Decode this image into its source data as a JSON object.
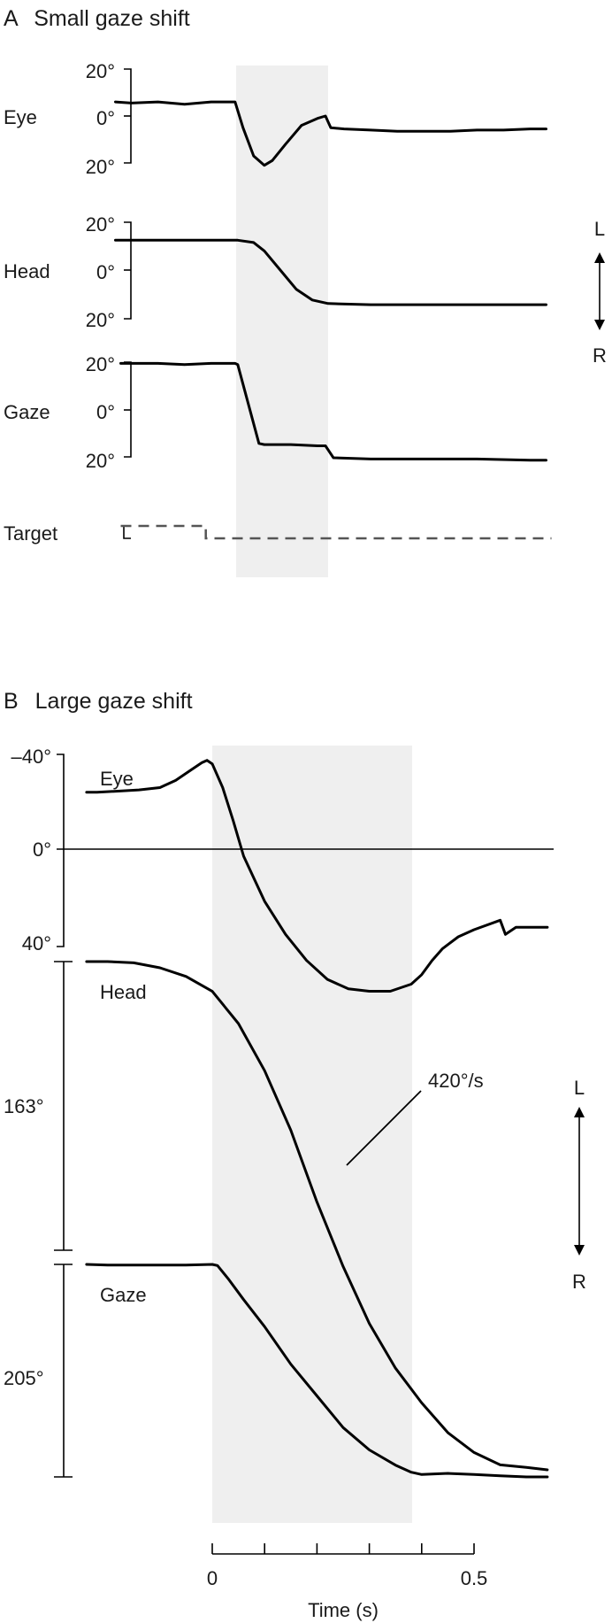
{
  "colors": {
    "shade": "#efefef",
    "trace": "#000000",
    "target": "#555555",
    "text": "#1a1a1a"
  },
  "chart_data": [
    {
      "panel": "A",
      "title": "Small gaze shift",
      "type": "line",
      "direction_labels": {
        "up": "L",
        "down": "R"
      },
      "shaded_interval_s": [
        0.047,
        0.22
      ],
      "traces": [
        {
          "name": "Eye",
          "tick_labels": [
            "20°",
            "0°",
            "20°"
          ],
          "ylim": [
            -20,
            20
          ],
          "t": [
            -0.18,
            -0.15,
            -0.1,
            -0.05,
            0.0,
            0.04,
            0.045,
            0.06,
            0.08,
            0.1,
            0.115,
            0.14,
            0.17,
            0.2,
            0.215,
            0.225,
            0.25,
            0.3,
            0.35,
            0.4,
            0.45,
            0.5,
            0.55,
            0.6,
            0.63
          ],
          "deg": [
            6,
            5.5,
            6,
            5,
            6,
            6,
            6,
            -5,
            -17,
            -21,
            -19,
            -12,
            -4,
            -1,
            0,
            -5,
            -5.5,
            -6,
            -6.5,
            -6.5,
            -6.5,
            -6,
            -6,
            -5.5,
            -5.5
          ]
        },
        {
          "name": "Head",
          "tick_labels": [
            "20°",
            "0°",
            "20°"
          ],
          "ylim": [
            -20,
            20
          ],
          "t": [
            -0.18,
            0.0,
            0.05,
            0.08,
            0.1,
            0.13,
            0.16,
            0.19,
            0.22,
            0.3,
            0.4,
            0.5,
            0.63
          ],
          "deg": [
            12.5,
            12.5,
            12.5,
            11.5,
            8,
            0,
            -8,
            -12.5,
            -14,
            -14.5,
            -14.5,
            -14.5,
            -14.5
          ]
        },
        {
          "name": "Gaze",
          "tick_labels": [
            "20°",
            "0°",
            "20°"
          ],
          "ylim": [
            -20,
            20
          ],
          "t": [
            -0.17,
            -0.1,
            -0.05,
            0.0,
            0.045,
            0.05,
            0.09,
            0.1,
            0.15,
            0.2,
            0.215,
            0.23,
            0.3,
            0.4,
            0.5,
            0.6,
            0.63
          ],
          "deg": [
            19.5,
            19.5,
            19,
            19.5,
            19.5,
            19,
            -14,
            -14.5,
            -14.5,
            -15,
            -15,
            -20,
            -20.5,
            -20.5,
            -20.5,
            -21,
            -21
          ]
        }
      ],
      "target": {
        "name": "Target",
        "t": [
          -0.17,
          -0.01,
          -0.01,
          0.64
        ],
        "level": [
          1,
          1,
          0,
          0
        ]
      }
    },
    {
      "panel": "B",
      "title": "Large gaze shift",
      "type": "line",
      "xlabel": "Time (s)",
      "xticks": [
        0,
        0.1,
        0.2,
        0.3,
        0.4,
        0.5
      ],
      "xticklabels": [
        "0",
        "",
        "",
        "",
        "",
        "0.5"
      ],
      "direction_labels": {
        "up": "L",
        "down": "R"
      },
      "shaded_interval_s": [
        0,
        0.38
      ],
      "annotation": "420°/s",
      "traces": [
        {
          "name": "Eye",
          "tick_labels": [
            "–40°",
            "0°",
            "40°"
          ],
          "ylim": [
            -40,
            40
          ],
          "t": [
            -0.24,
            -0.22,
            -0.18,
            -0.14,
            -0.1,
            -0.07,
            -0.04,
            -0.02,
            -0.01,
            0.0,
            0.02,
            0.04,
            0.06,
            0.1,
            0.14,
            0.18,
            0.22,
            0.26,
            0.3,
            0.34,
            0.38,
            0.4,
            0.42,
            0.44,
            0.47,
            0.5,
            0.55,
            0.56,
            0.58,
            0.64
          ],
          "deg": [
            -24,
            -24,
            -24.5,
            -25,
            -26,
            -29,
            -33.5,
            -36.5,
            -37.5,
            -36,
            -26,
            -12,
            3,
            22,
            36,
            47,
            55,
            59,
            60,
            60,
            57,
            53,
            47,
            42,
            37,
            34,
            30,
            36,
            33,
            33
          ]
        },
        {
          "name": "Head",
          "t": [
            -0.24,
            -0.2,
            -0.15,
            -0.1,
            -0.05,
            0.0,
            0.05,
            0.1,
            0.15,
            0.2,
            0.25,
            0.3,
            0.35,
            0.4,
            0.45,
            0.5,
            0.55,
            0.6,
            0.64
          ],
          "deg": [
            0,
            0,
            0.5,
            2.5,
            6,
            12,
            25,
            44,
            68,
            97,
            123,
            146,
            164,
            178,
            190,
            198,
            203,
            204,
            205
          ]
        },
        {
          "name": "Gaze",
          "t": [
            -0.24,
            -0.2,
            -0.1,
            -0.05,
            0.0,
            0.01,
            0.03,
            0.06,
            0.1,
            0.15,
            0.2,
            0.25,
            0.3,
            0.35,
            0.38,
            0.4,
            0.45,
            0.5,
            0.55,
            0.6,
            0.64
          ],
          "deg": [
            0,
            0.5,
            0.5,
            0.5,
            0,
            1,
            12,
            30,
            53,
            85,
            112,
            139,
            158,
            171,
            177,
            179,
            178,
            179,
            180,
            181,
            181
          ]
        }
      ],
      "brackets": [
        {
          "label": "163°"
        },
        {
          "label": "205°"
        }
      ]
    }
  ]
}
